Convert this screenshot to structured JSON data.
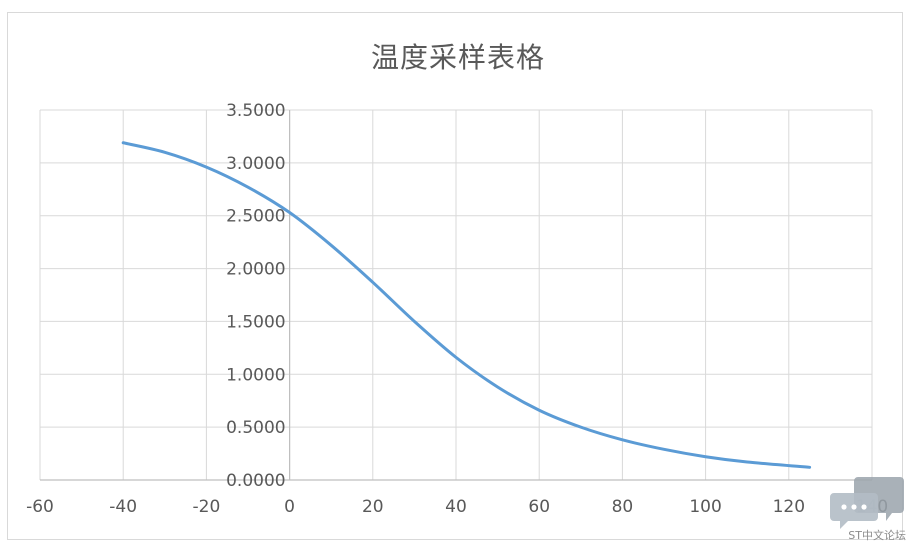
{
  "chart_data": {
    "type": "line",
    "title": "温度采样表格",
    "xlabel": "",
    "ylabel": "",
    "xlim": [
      -60,
      140
    ],
    "ylim": [
      0,
      3.5
    ],
    "x_ticks": [
      "-60",
      "-40",
      "-20",
      "0",
      "20",
      "40",
      "60",
      "80",
      "100",
      "120",
      "140"
    ],
    "y_ticks": [
      "0.0000",
      "0.5000",
      "1.0000",
      "1.5000",
      "2.0000",
      "2.5000",
      "3.0000",
      "3.5000"
    ],
    "grid": true,
    "legend": "none",
    "series": [
      {
        "color": "#5b9bd5",
        "x": [
          -40,
          -30,
          -20,
          -10,
          0,
          10,
          20,
          30,
          40,
          50,
          60,
          70,
          80,
          90,
          100,
          110,
          125
        ],
        "y": [
          3.19,
          3.1,
          2.96,
          2.77,
          2.53,
          2.22,
          1.87,
          1.5,
          1.16,
          0.88,
          0.66,
          0.5,
          0.38,
          0.29,
          0.22,
          0.17,
          0.12
        ]
      }
    ]
  },
  "watermark": {
    "text": "ST中文论坛"
  }
}
